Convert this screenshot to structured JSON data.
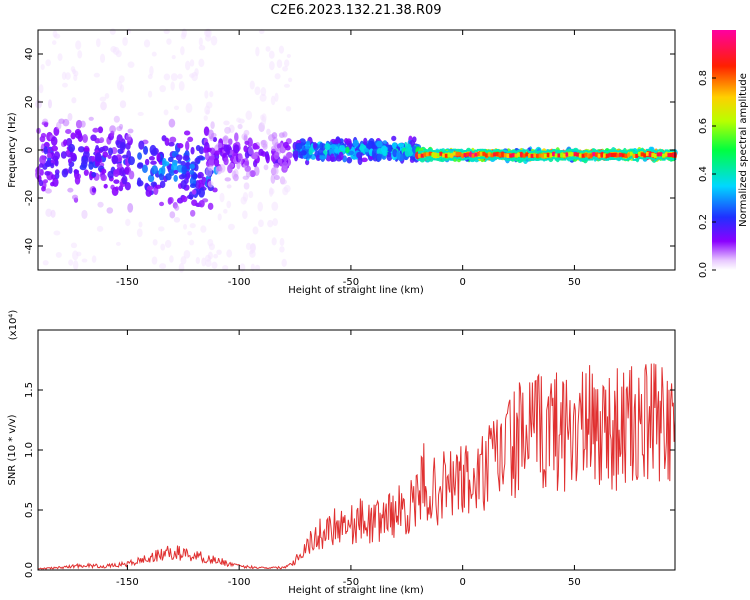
{
  "title": "C2E6.2023.132.21.38.R09",
  "colorbar": {
    "label": "Normalized spectral amplitude",
    "ticks": [
      0.0,
      0.2,
      0.4,
      0.6,
      0.8
    ],
    "tick_labels": [
      "0.0",
      "0.2",
      "0.4",
      "0.6",
      "0.8"
    ],
    "range": [
      0.0,
      1.0
    ]
  },
  "chart_data": [
    {
      "type": "heatmap",
      "xlabel": "Height of straight line (km)",
      "ylabel": "Frequency (Hz)",
      "xlim": [
        -190,
        95
      ],
      "ylim": [
        -50,
        50
      ],
      "xticks": [
        -150,
        -100,
        -50,
        0,
        50
      ],
      "xtick_labels": [
        "-150",
        "-100",
        "-50",
        "0",
        "50"
      ],
      "yticks": [
        -40,
        -20,
        0,
        20,
        40
      ],
      "ytick_labels": [
        "-40",
        "-20",
        "0",
        "20",
        "40"
      ],
      "colormap": "rainbow (violet-blue-cyan-green-yellow-red-magenta)",
      "features": [
        {
          "x_range": [
            -190,
            -148
          ],
          "freq_center": -5,
          "freq_spread": 14,
          "amplitude": 0.2
        },
        {
          "x_range": [
            -145,
            -110
          ],
          "freq_center": -8,
          "freq_spread": 12,
          "amplitude": 0.3
        },
        {
          "x_range": [
            -115,
            -77
          ],
          "freq_center": -2,
          "freq_spread": 8,
          "amplitude": 0.15
        },
        {
          "x_range": [
            -75,
            -20
          ],
          "freq_center": 0,
          "freq_spread": 4,
          "amplitude": 0.4
        },
        {
          "x_range": [
            -20,
            95
          ],
          "freq_center": -2,
          "freq_spread": 1.5,
          "amplitude": 0.85
        }
      ]
    },
    {
      "type": "line",
      "xlabel": "Height of straight line (km)",
      "ylabel": "SNR (10 * v/v)",
      "y_multiplier": "(x10⁴)",
      "xlim": [
        -190,
        95
      ],
      "ylim": [
        0,
        2.0
      ],
      "xticks": [
        -150,
        -100,
        -50,
        0,
        50
      ],
      "xtick_labels": [
        "-150",
        "-100",
        "-50",
        "0",
        "50"
      ],
      "yticks": [
        0.0,
        0.5,
        1.0,
        1.5
      ],
      "ytick_labels": [
        "0.0",
        "0.5",
        "1.0",
        "1.5"
      ],
      "color": "#e03030",
      "series": [
        {
          "x": [
            -190,
            -180,
            -170,
            -160,
            -150,
            -140,
            -130,
            -120,
            -110,
            -100,
            -90,
            -80,
            -75,
            -70,
            -65,
            -60,
            -55,
            -50,
            -45,
            -40,
            -35,
            -30,
            -25,
            -20,
            -17,
            -15,
            -10,
            -5,
            0,
            5,
            10,
            15,
            20,
            25,
            30,
            40,
            50,
            60,
            70,
            80,
            90,
            95
          ],
          "y": [
            0.01,
            0.02,
            0.04,
            0.03,
            0.05,
            0.1,
            0.15,
            0.12,
            0.08,
            0.03,
            0.02,
            0.02,
            0.08,
            0.2,
            0.28,
            0.35,
            0.4,
            0.38,
            0.42,
            0.38,
            0.45,
            0.48,
            0.52,
            0.55,
            0.8,
            0.62,
            0.68,
            0.72,
            0.75,
            0.7,
            0.82,
            0.92,
            1.02,
            1.08,
            1.12,
            1.17,
            1.18,
            1.18,
            1.18,
            1.19,
            1.22,
            1.25
          ]
        }
      ]
    }
  ]
}
